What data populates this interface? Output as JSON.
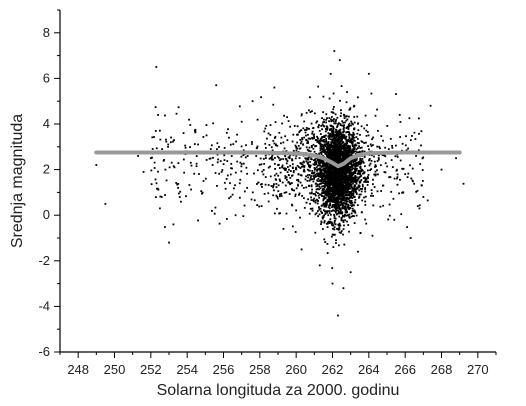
{
  "chart_data": {
    "type": "scatter",
    "xlabel": "Solarna longituda za 2000. godinu",
    "ylabel": "Srednja magnituda",
    "xlim": [
      247,
      271
    ],
    "ylim": [
      -6,
      9
    ],
    "x_ticks": [
      248,
      250,
      252,
      254,
      256,
      258,
      260,
      262,
      264,
      266,
      268,
      270
    ],
    "y_ticks": [
      -6,
      -4,
      -2,
      0,
      2,
      4,
      6,
      8
    ],
    "grid": false,
    "series": [
      {
        "kind": "points",
        "color": "#000000",
        "description_points": "dense cluster centred near 262.3 deg, mean magnitude about 1.8; sparse scatter elsewhere",
        "points": [
          [
            249.0,
            2.2
          ],
          [
            249.5,
            0.5
          ],
          [
            251.3,
            2.6
          ],
          [
            251.6,
            1.9
          ],
          [
            252.0,
            2.5
          ],
          [
            252.3,
            6.5
          ],
          [
            252.4,
            4.4
          ],
          [
            252.5,
            0.3
          ],
          [
            252.6,
            0.8
          ],
          [
            252.8,
            2.0
          ],
          [
            253.0,
            -1.2
          ],
          [
            253.1,
            3.2
          ],
          [
            253.3,
            2.1
          ],
          [
            253.5,
            1.2
          ],
          [
            253.8,
            3.6
          ],
          [
            254.2,
            2.3
          ],
          [
            254.6,
            3.1
          ],
          [
            254.9,
            1.5
          ],
          [
            255.3,
            2.9
          ],
          [
            255.6,
            5.7
          ],
          [
            255.9,
            1.9
          ],
          [
            256.3,
            3.4
          ],
          [
            256.5,
            0.9
          ],
          [
            256.8,
            2.8
          ],
          [
            257.0,
            4.1
          ],
          [
            257.3,
            1.2
          ],
          [
            257.6,
            5.0
          ],
          [
            257.8,
            2.6
          ],
          [
            258.1,
            0.4
          ],
          [
            258.3,
            3.8
          ],
          [
            258.6,
            1.7
          ],
          [
            258.8,
            5.6
          ],
          [
            259.0,
            2.2
          ],
          [
            259.3,
            -0.6
          ],
          [
            259.5,
            4.3
          ],
          [
            259.8,
            1.1
          ],
          [
            260.0,
            3.0
          ],
          [
            260.3,
            -1.5
          ],
          [
            260.5,
            2.5
          ],
          [
            260.7,
            4.6
          ],
          [
            260.9,
            0.2
          ],
          [
            261.1,
            3.3
          ],
          [
            261.3,
            -2.2
          ],
          [
            261.5,
            5.2
          ],
          [
            261.7,
            1.4
          ],
          [
            261.9,
            6.2
          ],
          [
            262.0,
            -3.0
          ],
          [
            262.1,
            7.2
          ],
          [
            262.3,
            -4.4
          ],
          [
            262.4,
            6.8
          ],
          [
            262.6,
            -3.2
          ],
          [
            262.8,
            5.4
          ],
          [
            263.0,
            -2.5
          ],
          [
            263.2,
            4.8
          ],
          [
            263.4,
            -1.6
          ],
          [
            263.6,
            3.9
          ],
          [
            263.8,
            0.6
          ],
          [
            264.0,
            6.2
          ],
          [
            264.2,
            -0.9
          ],
          [
            264.5,
            3.7
          ],
          [
            264.8,
            1.3
          ],
          [
            265.1,
            2.9
          ],
          [
            265.4,
            -0.2
          ],
          [
            265.7,
            4.4
          ],
          [
            266.0,
            1.8
          ],
          [
            266.3,
            -1.0
          ],
          [
            266.6,
            2.6
          ],
          [
            267.0,
            0.8
          ],
          [
            267.4,
            4.8
          ],
          [
            268.0,
            2.0
          ],
          [
            268.8,
            2.5
          ]
        ]
      },
      {
        "kind": "line",
        "color": "#999999",
        "x": [
          249,
          252,
          255,
          258,
          259,
          260,
          260.5,
          261,
          261.5,
          262,
          262.3,
          262.6,
          263,
          263.5,
          264,
          265,
          266,
          268,
          269
        ],
        "y": [
          2.75,
          2.75,
          2.75,
          2.75,
          2.73,
          2.7,
          2.68,
          2.62,
          2.5,
          2.3,
          2.15,
          2.25,
          2.5,
          2.65,
          2.72,
          2.74,
          2.75,
          2.75,
          2.75
        ]
      }
    ]
  }
}
